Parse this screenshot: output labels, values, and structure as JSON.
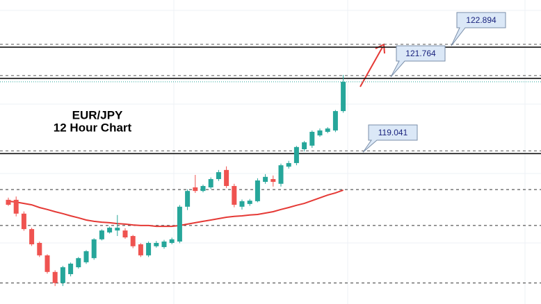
{
  "chart_data": {
    "type": "candlestick",
    "title": "EUR/JPY",
    "subtitle": "12 Hour Chart",
    "ylim": [
      113.6,
      124.6
    ],
    "up_color": "#26a69a",
    "down_color": "#ef5350",
    "open": [
      117.37,
      117.37,
      116.87,
      116.31,
      115.81,
      115.36,
      114.76,
      114.36,
      114.68,
      114.93,
      115.11,
      115.26,
      115.94,
      116.19,
      116.26,
      116.26,
      116.06,
      115.76,
      115.36,
      115.69,
      115.66,
      115.81,
      115.86,
      117.12,
      117.82,
      117.69,
      117.82,
      118.12,
      118.45,
      117.87,
      117.12,
      117.22,
      117.32,
      118.02,
      118.12,
      117.95,
      118.57,
      118.7,
      119.2,
      119.33,
      119.7,
      119.83,
      119.88,
      120.58
    ],
    "high": [
      117.45,
      117.49,
      116.95,
      116.36,
      115.86,
      115.4,
      114.82,
      114.98,
      115.1,
      115.3,
      115.55,
      115.98,
      116.3,
      116.4,
      116.82,
      116.34,
      116.1,
      115.8,
      115.86,
      115.88,
      115.92,
      116.0,
      117.18,
      117.75,
      118.27,
      117.92,
      118.18,
      118.45,
      118.58,
      117.95,
      117.38,
      117.4,
      118.15,
      118.3,
      118.25,
      118.68,
      118.78,
      119.32,
      119.5,
      119.88,
      119.95,
      120.0,
      120.62,
      121.89
    ],
    "low": [
      117.15,
      116.77,
      116.25,
      115.7,
      115.3,
      114.7,
      114.25,
      114.25,
      114.6,
      114.88,
      115.05,
      115.2,
      115.9,
      116.15,
      116.06,
      115.96,
      115.62,
      115.3,
      115.3,
      115.64,
      115.6,
      115.76,
      115.8,
      117.0,
      117.62,
      117.64,
      117.76,
      118.05,
      117.8,
      117.1,
      117.02,
      117.15,
      117.28,
      117.95,
      117.85,
      117.85,
      118.5,
      118.62,
      119.12,
      119.25,
      119.65,
      119.78,
      119.82,
      120.52
    ],
    "close": [
      117.19,
      116.87,
      116.31,
      115.76,
      115.36,
      114.76,
      114.36,
      114.93,
      115.06,
      115.26,
      115.51,
      115.94,
      116.26,
      116.36,
      116.36,
      116.01,
      115.69,
      115.36,
      115.81,
      115.81,
      115.86,
      115.94,
      117.12,
      117.69,
      117.69,
      117.87,
      118.12,
      118.37,
      117.87,
      117.19,
      117.32,
      117.34,
      118.07,
      118.2,
      118.02,
      118.62,
      118.7,
      119.28,
      119.45,
      119.83,
      119.88,
      119.95,
      120.58,
      121.64
    ],
    "moving_average": {
      "color": "#e53935",
      "values": [
        117.32,
        117.29,
        117.24,
        117.19,
        117.09,
        117.02,
        116.94,
        116.87,
        116.79,
        116.72,
        116.64,
        116.59,
        116.56,
        116.54,
        116.51,
        116.49,
        116.46,
        116.44,
        116.44,
        116.41,
        116.41,
        116.41,
        116.44,
        116.49,
        116.54,
        116.59,
        116.64,
        116.69,
        116.74,
        116.77,
        116.79,
        116.82,
        116.84,
        116.89,
        116.94,
        117.02,
        117.09,
        117.17,
        117.24,
        117.34,
        117.44,
        117.54,
        117.62,
        117.72
      ]
    },
    "levels": [
      122.894,
      121.764,
      119.041
    ],
    "dashed_levels": [
      117.74,
      116.44,
      114.36
    ],
    "last_price": 121.64
  }
}
